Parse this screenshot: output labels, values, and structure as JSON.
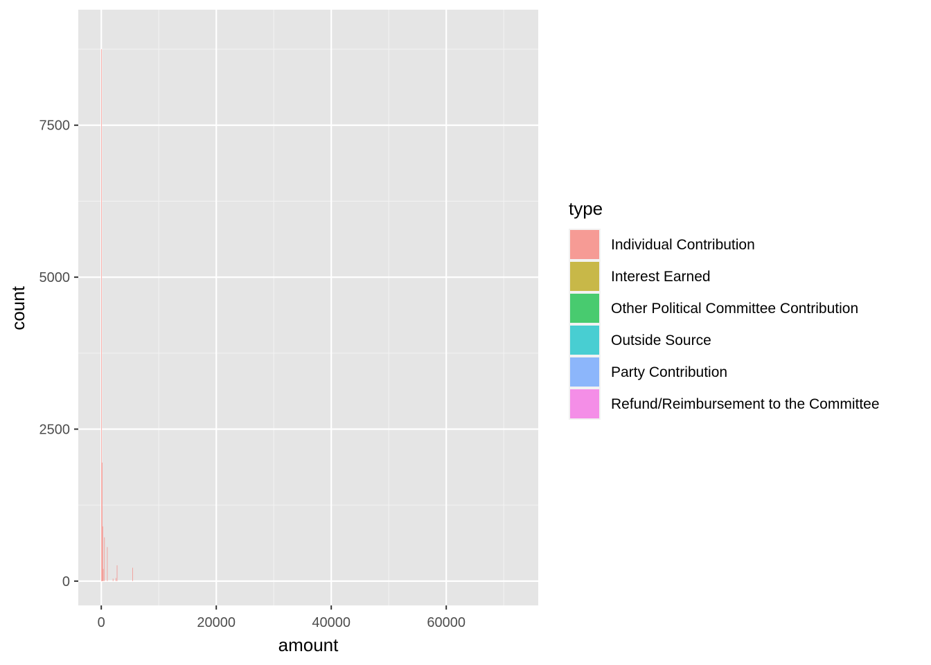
{
  "chart_data": {
    "type": "bar",
    "xlabel": "amount",
    "ylabel": "count",
    "xlim": [
      -4000,
      76000
    ],
    "ylim": [
      -400,
      9400
    ],
    "x_ticks": [
      0,
      20000,
      40000,
      60000
    ],
    "y_ticks": [
      0,
      2500,
      5000,
      7500
    ],
    "grid": true,
    "legend": {
      "title": "type",
      "placement": "right",
      "entries": [
        {
          "label": "Individual Contribution",
          "color": "#F8766D"
        },
        {
          "label": "Interest Earned",
          "color": "#B79F00"
        },
        {
          "label": "Other Political Committee Contribution",
          "color": "#00BA38"
        },
        {
          "label": "Outside Source",
          "color": "#00BFC4"
        },
        {
          "label": "Party Contribution",
          "color": "#619CFF"
        },
        {
          "label": "Refund/Reimbursement to the Committee",
          "color": "#F564E3"
        }
      ]
    },
    "bin_width": 100,
    "series": [
      {
        "name": "Individual Contribution",
        "color": "#F8766D",
        "bins": [
          {
            "x": 0,
            "count": 8750
          },
          {
            "x": 100,
            "count": 1950
          },
          {
            "x": 200,
            "count": 900
          },
          {
            "x": 300,
            "count": 200
          },
          {
            "x": 500,
            "count": 720
          },
          {
            "x": 1000,
            "count": 560
          },
          {
            "x": 2000,
            "count": 40
          },
          {
            "x": 2500,
            "count": 50
          },
          {
            "x": 2700,
            "count": 260
          },
          {
            "x": 5400,
            "count": 220
          }
        ]
      }
    ]
  }
}
